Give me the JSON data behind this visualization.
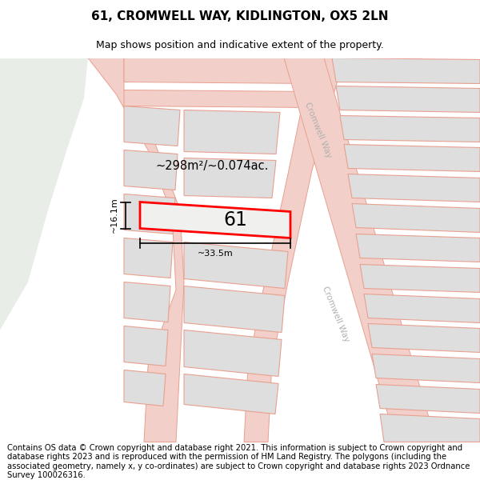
{
  "title": "61, CROMWELL WAY, KIDLINGTON, OX5 2LN",
  "subtitle": "Map shows position and indicative extent of the property.",
  "footer": "Contains OS data © Crown copyright and database right 2021. This information is subject to Crown copyright and database rights 2023 and is reproduced with the permission of HM Land Registry. The polygons (including the associated geometry, namely x, y co-ordinates) are subject to Crown copyright and database rights 2023 Ordnance Survey 100026316.",
  "area_text": "~298m²/~0.074ac.",
  "width_text": "~33.5m",
  "height_text": "~16.1m",
  "plot_number": "61",
  "bg_map_color": "#f7f7f5",
  "bg_green_color": "#e8ede8",
  "road_color": "#f2cfc8",
  "building_color": "#dedede",
  "building_edge_color": "#e8a090",
  "plot_outline_color": "#ff0000",
  "title_fontsize": 11,
  "subtitle_fontsize": 9,
  "footer_fontsize": 7.2
}
